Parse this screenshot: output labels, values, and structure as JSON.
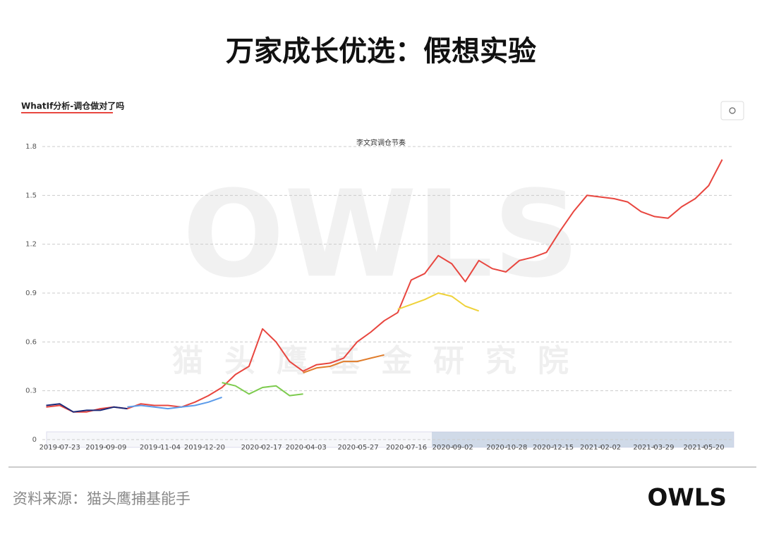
{
  "title": "万家成长优选：假想实验",
  "tab": "WhatIf分析-调仓做对了吗",
  "source": "资料来源：猫头鹰捕基能手",
  "logo": "OWLS",
  "watermark": {
    "logo": "OWLS",
    "text": "猫头鹰基金研究院"
  },
  "chart_data": {
    "type": "line",
    "title": "李文宾调仓节奏",
    "x": [
      "2019-07-09",
      "2019-07-23",
      "2019-08-06",
      "2019-08-20",
      "2019-09-03",
      "2019-09-17",
      "2019-10-01",
      "2019-10-15",
      "2019-10-29",
      "2019-11-12",
      "2019-11-26",
      "2019-12-10",
      "2019-12-24",
      "2020-01-07",
      "2020-01-21",
      "2020-02-04",
      "2020-02-18",
      "2020-03-03",
      "2020-03-17",
      "2020-03-31",
      "2020-04-14",
      "2020-04-28",
      "2020-05-12",
      "2020-05-26",
      "2020-06-09",
      "2020-06-23",
      "2020-07-07",
      "2020-07-21",
      "2020-08-04",
      "2020-08-18",
      "2020-09-01",
      "2020-09-15",
      "2020-09-29",
      "2020-10-13",
      "2020-10-27",
      "2020-11-10",
      "2020-11-24",
      "2020-12-08",
      "2020-12-22",
      "2021-01-05",
      "2021-01-19",
      "2021-02-02",
      "2021-02-16",
      "2021-03-02",
      "2021-03-16",
      "2021-03-30",
      "2021-04-13",
      "2021-04-27",
      "2021-05-11",
      "2021-05-25",
      "2021-06-08"
    ],
    "series": [
      {
        "color": "#e8463f",
        "values": [
          0.2,
          0.21,
          0.17,
          0.17,
          0.19,
          0.2,
          0.19,
          0.22,
          0.21,
          0.21,
          0.2,
          0.23,
          0.27,
          0.32,
          0.4,
          0.45,
          0.68,
          0.6,
          0.48,
          0.42,
          0.46,
          0.47,
          0.5,
          0.6,
          0.66,
          0.73,
          0.78,
          0.98,
          1.02,
          1.13,
          1.08,
          0.97,
          1.1,
          1.05,
          1.03,
          1.1,
          1.12,
          1.15,
          1.28,
          1.4,
          1.5,
          1.49,
          1.48,
          1.46,
          1.4,
          1.37,
          1.36,
          1.43,
          1.48,
          1.56,
          1.72
        ]
      },
      {
        "color": "#1b2a7a",
        "values": [
          0.21,
          0.22,
          0.17,
          0.18,
          0.18,
          0.2,
          0.19,
          null,
          null,
          null,
          null,
          null,
          null,
          null,
          null,
          null,
          null,
          null,
          null,
          null,
          null,
          null,
          null,
          null,
          null,
          null,
          null,
          null,
          null,
          null,
          null,
          null,
          null,
          null,
          null,
          null,
          null,
          null,
          null,
          null,
          null,
          null,
          null,
          null,
          null,
          null,
          null,
          null,
          null,
          null,
          null
        ]
      },
      {
        "color": "#5b9bea",
        "values": [
          null,
          null,
          null,
          null,
          null,
          null,
          0.2,
          0.21,
          0.2,
          0.19,
          0.2,
          0.21,
          0.23,
          0.26,
          null,
          null,
          null,
          null,
          null,
          null,
          null,
          null,
          null,
          null,
          null,
          null,
          null,
          null,
          null,
          null,
          null,
          null,
          null,
          null,
          null,
          null,
          null,
          null,
          null,
          null,
          null,
          null,
          null,
          null,
          null,
          null,
          null,
          null,
          null,
          null,
          null
        ]
      },
      {
        "color": "#7dcb4e",
        "values": [
          null,
          null,
          null,
          null,
          null,
          null,
          null,
          null,
          null,
          null,
          null,
          null,
          null,
          0.35,
          0.33,
          0.28,
          0.32,
          0.33,
          0.27,
          0.28,
          null,
          null,
          null,
          null,
          null,
          null,
          null,
          null,
          null,
          null,
          null,
          null,
          null,
          null,
          null,
          null,
          null,
          null,
          null,
          null,
          null,
          null,
          null,
          null,
          null,
          null,
          null,
          null,
          null,
          null,
          null
        ]
      },
      {
        "color": "#e07d2c",
        "values": [
          null,
          null,
          null,
          null,
          null,
          null,
          null,
          null,
          null,
          null,
          null,
          null,
          null,
          null,
          null,
          null,
          null,
          null,
          null,
          0.41,
          0.44,
          0.45,
          0.48,
          0.48,
          0.5,
          0.52,
          null,
          null,
          null,
          null,
          null,
          null,
          null,
          null,
          null,
          null,
          null,
          null,
          null,
          null,
          null,
          null,
          null,
          null,
          null,
          null,
          null,
          null,
          null,
          null,
          null
        ]
      },
      {
        "color": "#efd23a",
        "values": [
          null,
          null,
          null,
          null,
          null,
          null,
          null,
          null,
          null,
          null,
          null,
          null,
          null,
          null,
          null,
          null,
          null,
          null,
          null,
          null,
          null,
          null,
          null,
          null,
          null,
          null,
          0.8,
          0.83,
          0.86,
          0.9,
          0.88,
          0.82,
          0.79,
          null,
          null,
          null,
          null,
          null,
          null,
          null,
          null,
          null,
          null,
          null,
          null,
          null,
          null,
          null,
          null,
          null,
          null
        ]
      }
    ],
    "xlim": [
      "2019-07-05",
      "2021-06-20"
    ],
    "xticks": [
      "2019-07-23",
      "2019-09-09",
      "2019-11-04",
      "2019-12-20",
      "2020-02-17",
      "2020-04-03",
      "2020-05-27",
      "2020-07-16",
      "2020-09-02",
      "2020-10-28",
      "2020-12-15",
      "2021-02-02",
      "2021-03-29",
      "2021-05-20"
    ],
    "ylim": [
      0,
      1.8
    ],
    "yticks": [
      0,
      0.3,
      0.6,
      0.9,
      1.2,
      1.5,
      1.8
    ],
    "grid": true
  }
}
